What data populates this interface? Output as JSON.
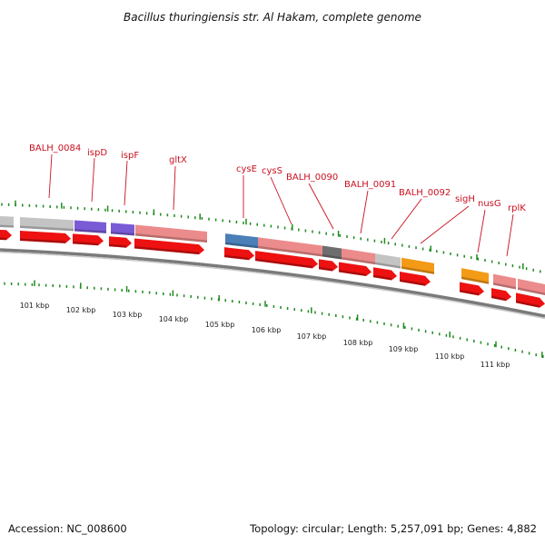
{
  "title": "Bacillus thuringiensis str. Al Hakam, complete genome",
  "footer": {
    "accession": "Accession: NC_008600",
    "summary": "Topology: circular; Length: 5,257,091 bp; Genes: 4,882"
  },
  "kbp_ticks": [
    "101 kbp",
    "102 kbp",
    "103 kbp",
    "104 kbp",
    "105 kbp",
    "106 kbp",
    "107 kbp",
    "108 kbp",
    "109 kbp",
    "110 kbp",
    "111 kbp"
  ],
  "gene_labels": [
    "BALH_0084",
    "ispD",
    "ispF",
    "gltX",
    "cysE",
    "cysS",
    "BALH_0090",
    "BALH_0091",
    "BALH_0092",
    "sigH",
    "nusG",
    "rplK"
  ],
  "colors": {
    "label_red": "#c8101e",
    "cds_red": "#ee1111",
    "feature_pink": "#ec8b8b",
    "feature_gray": "#c4c4c4",
    "feature_purple": "#7a5bd6",
    "feature_blue": "#4a7fb8",
    "feature_dark": "#6e6e6e",
    "feature_orange": "#f39a17",
    "tick_green": "#1f8a1f",
    "backbone": "#7a7a7a"
  },
  "icons": [
    "genome-map"
  ]
}
